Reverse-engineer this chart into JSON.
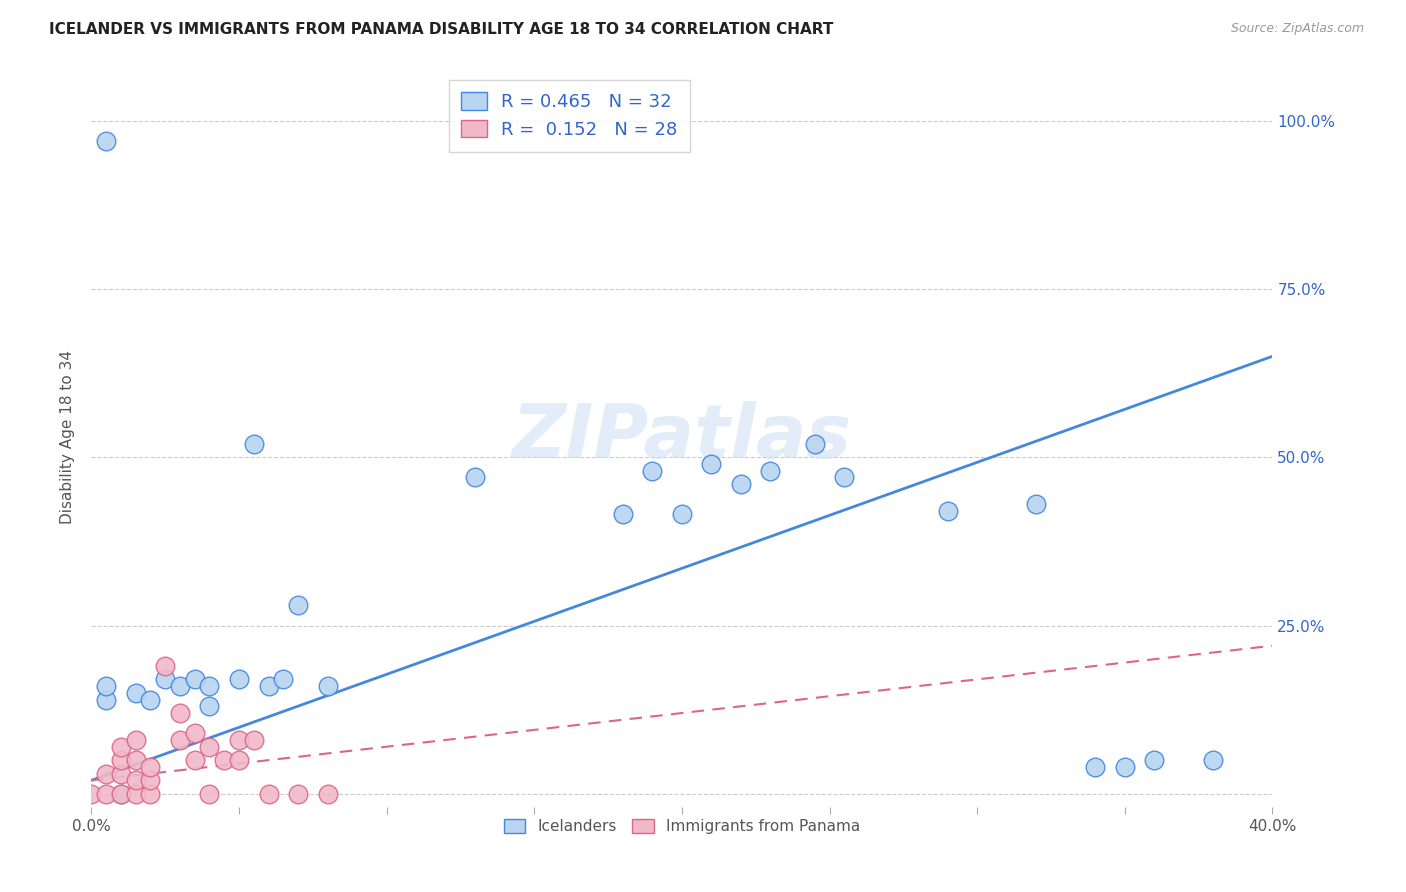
{
  "title": "ICELANDER VS IMMIGRANTS FROM PANAMA DISABILITY AGE 18 TO 34 CORRELATION CHART",
  "source": "Source: ZipAtlas.com",
  "ylabel": "Disability Age 18 to 34",
  "xlim": [
    0.0,
    0.4
  ],
  "ylim": [
    -0.02,
    1.08
  ],
  "ytick_vals": [
    0.0,
    0.25,
    0.5,
    0.75,
    1.0
  ],
  "ytick_labels_right": [
    "",
    "25.0%",
    "50.0%",
    "75.0%",
    "100.0%"
  ],
  "xtick_vals": [
    0.0,
    0.05,
    0.1,
    0.15,
    0.2,
    0.25,
    0.3,
    0.35,
    0.4
  ],
  "xtick_labels": [
    "0.0%",
    "",
    "",
    "",
    "",
    "",
    "",
    "",
    "40.0%"
  ],
  "blue_R": 0.465,
  "blue_N": 32,
  "pink_R": 0.152,
  "pink_N": 28,
  "blue_fill": "#b8d4f0",
  "pink_fill": "#f0b8c8",
  "blue_edge": "#4488dd",
  "pink_edge": "#dd6688",
  "blue_line": "#4488dd",
  "pink_line": "#dd6688",
  "watermark": "ZIPatlas",
  "icelanders_x": [
    0.005,
    0.005,
    0.005,
    0.01,
    0.015,
    0.02,
    0.025,
    0.03,
    0.035,
    0.04,
    0.04,
    0.05,
    0.055,
    0.06,
    0.065,
    0.07,
    0.08,
    0.13,
    0.18,
    0.19,
    0.21,
    0.22,
    0.23,
    0.245,
    0.255,
    0.29,
    0.32,
    0.35,
    0.36,
    0.38,
    0.2,
    0.34
  ],
  "icelanders_y": [
    0.97,
    0.14,
    0.16,
    0.0,
    0.15,
    0.14,
    0.17,
    0.16,
    0.17,
    0.13,
    0.16,
    0.17,
    0.52,
    0.16,
    0.17,
    0.28,
    0.16,
    0.47,
    0.415,
    0.48,
    0.49,
    0.46,
    0.48,
    0.52,
    0.47,
    0.42,
    0.43,
    0.04,
    0.05,
    0.05,
    0.415,
    0.04
  ],
  "panama_x": [
    0.0,
    0.005,
    0.005,
    0.01,
    0.01,
    0.01,
    0.01,
    0.015,
    0.015,
    0.015,
    0.015,
    0.02,
    0.02,
    0.02,
    0.025,
    0.03,
    0.03,
    0.035,
    0.035,
    0.04,
    0.04,
    0.045,
    0.05,
    0.05,
    0.055,
    0.06,
    0.07,
    0.08
  ],
  "panama_y": [
    0.0,
    0.0,
    0.03,
    0.0,
    0.03,
    0.05,
    0.07,
    0.0,
    0.02,
    0.05,
    0.08,
    0.0,
    0.02,
    0.04,
    0.19,
    0.08,
    0.12,
    0.05,
    0.09,
    0.0,
    0.07,
    0.05,
    0.05,
    0.08,
    0.08,
    0.0,
    0.0,
    0.0
  ],
  "blue_line_x": [
    0.0,
    0.4
  ],
  "blue_line_y": [
    0.02,
    0.65
  ],
  "pink_line_x": [
    0.0,
    0.4
  ],
  "pink_line_y": [
    0.02,
    0.22
  ]
}
